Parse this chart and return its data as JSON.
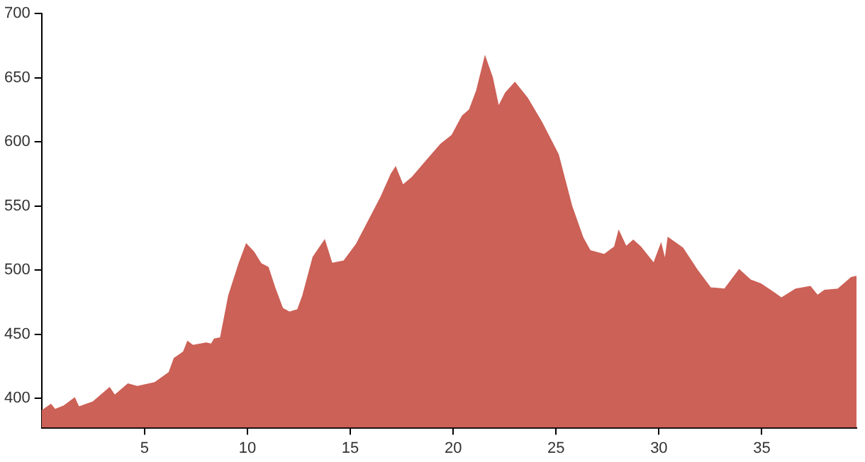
{
  "chart_data": {
    "type": "area",
    "x": [
      0,
      0.45,
      0.65,
      1.1,
      1.6,
      1.8,
      2.5,
      3.3,
      3.55,
      4.2,
      4.65,
      5.5,
      6.2,
      6.45,
      6.9,
      7.1,
      7.35,
      8.0,
      8.25,
      8.4,
      8.7,
      9.1,
      9.6,
      9.95,
      10.3,
      10.65,
      11.0,
      11.35,
      11.7,
      12.05,
      12.45,
      12.7,
      13.2,
      13.75,
      14.1,
      14.7,
      15.3,
      15.95,
      16.5,
      17.0,
      17.2,
      17.55,
      18.0,
      18.7,
      19.4,
      19.95,
      20.45,
      20.8,
      21.15,
      21.55,
      21.9,
      22.2,
      22.55,
      23.0,
      23.6,
      24.3,
      25.1,
      25.75,
      26.3,
      26.65,
      27.35,
      27.85,
      28.05,
      28.4,
      28.75,
      29.1,
      29.75,
      30.1,
      30.3,
      30.45,
      31.15,
      31.85,
      32.5,
      33.2,
      33.9,
      34.45,
      34.95,
      35.6,
      35.95,
      36.65,
      37.35,
      37.7,
      38.05,
      38.7,
      39.35,
      39.6
    ],
    "series": [
      {
        "color": "#cc6157",
        "values": [
          390,
          395,
          391,
          394,
          400,
          393,
          397,
          408,
          402,
          411,
          409,
          412,
          420,
          431,
          436,
          444,
          441,
          443,
          442,
          446,
          447,
          480,
          505,
          520,
          514,
          505,
          502,
          485,
          470,
          467,
          469,
          480,
          510,
          523,
          505,
          507,
          520,
          540,
          557,
          575,
          580,
          566,
          572,
          585,
          598,
          605,
          620,
          625,
          640,
          666,
          650,
          627,
          638,
          646,
          634,
          615,
          590,
          550,
          525,
          515,
          512,
          518,
          530,
          518,
          523,
          518,
          505,
          520,
          507,
          525,
          517,
          500,
          486,
          485,
          500,
          492,
          489,
          482,
          478,
          485,
          487,
          480,
          484,
          485,
          494,
          495
        ]
      }
    ],
    "xlim": [
      0,
      39.6
    ],
    "xticks": [
      5,
      10,
      15,
      20,
      25,
      30,
      35
    ],
    "ylim": [
      377,
      700
    ],
    "yticks": [
      400,
      450,
      500,
      550,
      600,
      650,
      700
    ],
    "grid": false,
    "legend": false
  }
}
